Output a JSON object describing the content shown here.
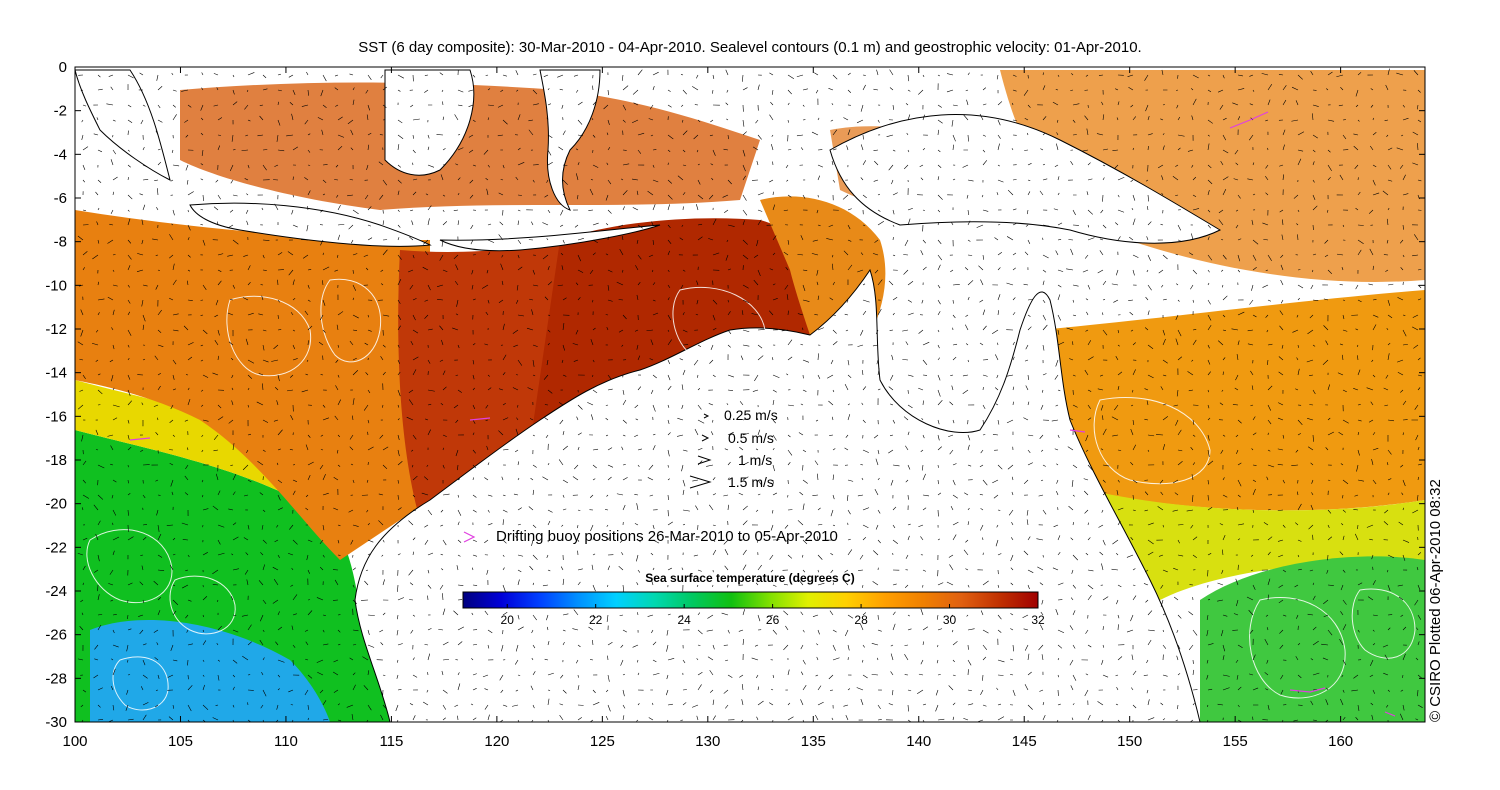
{
  "title": "SST (6 day composite): 30-Mar-2010 - 04-Apr-2010. Sealevel contours (0.1 m) and geostrophic velocity: 01-Apr-2010.",
  "credit": "© CSIRO Plotted 06-Apr-2010 08:32",
  "map": {
    "lon_range": [
      100,
      164
    ],
    "lat_range": [
      -30,
      0
    ],
    "x_ticks": [
      100,
      105,
      110,
      115,
      120,
      125,
      130,
      135,
      140,
      145,
      150,
      155,
      160
    ],
    "x_tick_labels": [
      "100",
      "105",
      "110",
      "115",
      "120",
      "125",
      "130",
      "135",
      "140",
      "145",
      "150",
      "155",
      "160"
    ],
    "y_ticks": [
      0,
      -2,
      -4,
      -6,
      -8,
      -10,
      -12,
      -14,
      -16,
      -18,
      -20,
      -22,
      -24,
      -26,
      -28,
      -30
    ],
    "y_tick_labels": [
      "0",
      "-2",
      "-4",
      "-6",
      "-8",
      "-10",
      "-12",
      "-14",
      "-16",
      "-18",
      "-20",
      "-22",
      "-24",
      "-26",
      "-28",
      "-30"
    ]
  },
  "velocity_legend": [
    {
      "label": "0.25 m/s",
      "speed": 0.25
    },
    {
      "label": "0.5 m/s",
      "speed": 0.5
    },
    {
      "label": "1 m/s",
      "speed": 1
    },
    {
      "label": "1.5 m/s",
      "speed": 1.5
    }
  ],
  "buoy_legend": {
    "symbol": ">",
    "label": "Drifting buoy positions 26-Mar-2010 to 05-Apr-2010",
    "color": "#e040e0"
  },
  "colorbar": {
    "title": "Sea surface temperature (degrees C)",
    "min": 19,
    "max": 32,
    "tick_values": [
      20,
      22,
      24,
      26,
      28,
      30,
      32
    ],
    "tick_labels": [
      "20",
      "22",
      "24",
      "26",
      "28",
      "30",
      "32"
    ],
    "colors": [
      "#00007f",
      "#0000d8",
      "#0040ff",
      "#0090ff",
      "#00d0ff",
      "#00d8b0",
      "#00c860",
      "#10c010",
      "#80e000",
      "#e0f000",
      "#ffd000",
      "#ffa000",
      "#f08000",
      "#e06010",
      "#c03000",
      "#a00000"
    ]
  },
  "colors": {
    "land": "#ffffff",
    "coast": "#000000",
    "contour": "#ffffff",
    "arrow": "#000000"
  }
}
